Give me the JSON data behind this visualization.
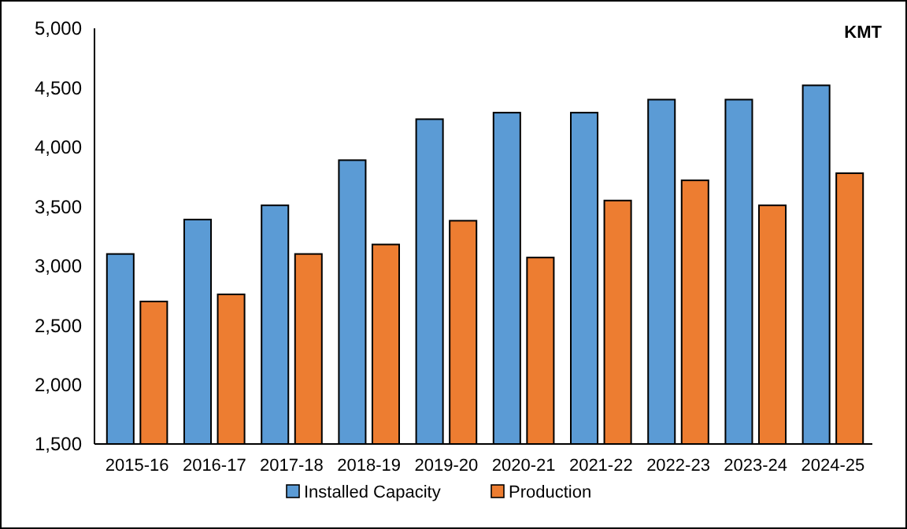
{
  "chart_data": {
    "type": "bar",
    "categories": [
      "2015-16",
      "2016-17",
      "2017-18",
      "2018-19",
      "2019-20",
      "2020-21",
      "2021-22",
      "2022-23",
      "2023-24",
      "2024-25"
    ],
    "series": [
      {
        "name": "Installed Capacity",
        "color": "#5b9bd5",
        "values": [
          3100,
          3390,
          3510,
          3890,
          4235,
          4290,
          4290,
          4400,
          4400,
          4520
        ]
      },
      {
        "name": "Production",
        "color": "#ed7d31",
        "values": [
          2700,
          2760,
          3100,
          3180,
          3380,
          3070,
          3550,
          3720,
          3510,
          3780
        ]
      }
    ],
    "ylim": [
      1500,
      5000
    ],
    "yticks": [
      {
        "value": 1500,
        "label": "1,500"
      },
      {
        "value": 2000,
        "label": "2,000"
      },
      {
        "value": 2500,
        "label": "2,500"
      },
      {
        "value": 3000,
        "label": "3,000"
      },
      {
        "value": 3500,
        "label": "3,500"
      },
      {
        "value": 4000,
        "label": "4,000"
      },
      {
        "value": 4500,
        "label": "4,500"
      },
      {
        "value": 5000,
        "label": "5,000"
      }
    ],
    "annotations": [
      "KMT"
    ],
    "legend": "bottom",
    "grid": false
  }
}
